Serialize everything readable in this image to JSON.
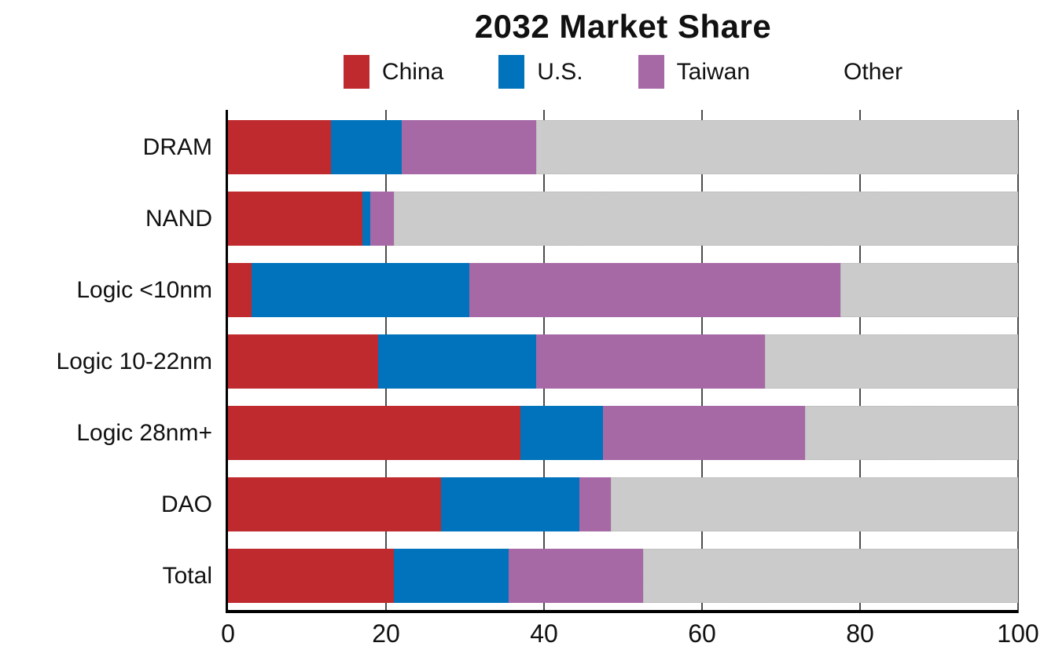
{
  "chart_data": {
    "type": "bar",
    "orientation": "horizontal",
    "stacked": true,
    "title": "2032 Market Share",
    "legend_position": "top",
    "grid": "vertical",
    "xlim": [
      0,
      100
    ],
    "x_ticks": [
      "0",
      "20",
      "40",
      "60",
      "80",
      "100"
    ],
    "categories": [
      "DRAM",
      "NAND",
      "Logic <10nm",
      "Logic 10-22nm",
      "Logic 28nm+",
      "DAO",
      "Total"
    ],
    "series": [
      {
        "name": "China",
        "color": "#bf2a2e",
        "values": [
          13,
          17,
          3,
          19,
          37,
          27,
          21
        ]
      },
      {
        "name": "U.S.",
        "color": "#0073bc",
        "values": [
          9,
          1,
          27.5,
          20,
          10.5,
          17.5,
          14.5
        ]
      },
      {
        "name": "Taiwan",
        "color": "#a669a6",
        "values": [
          17,
          3,
          47,
          29,
          25.5,
          4,
          17
        ]
      },
      {
        "name": "Other",
        "color": "#cbcbcb",
        "values": [
          61,
          79,
          22.5,
          32,
          27,
          51.5,
          47.5
        ],
        "dotted_border": true
      }
    ],
    "colors": {
      "axis": "#000000",
      "gridline": "#4d4d4d",
      "text": "#111111"
    }
  }
}
